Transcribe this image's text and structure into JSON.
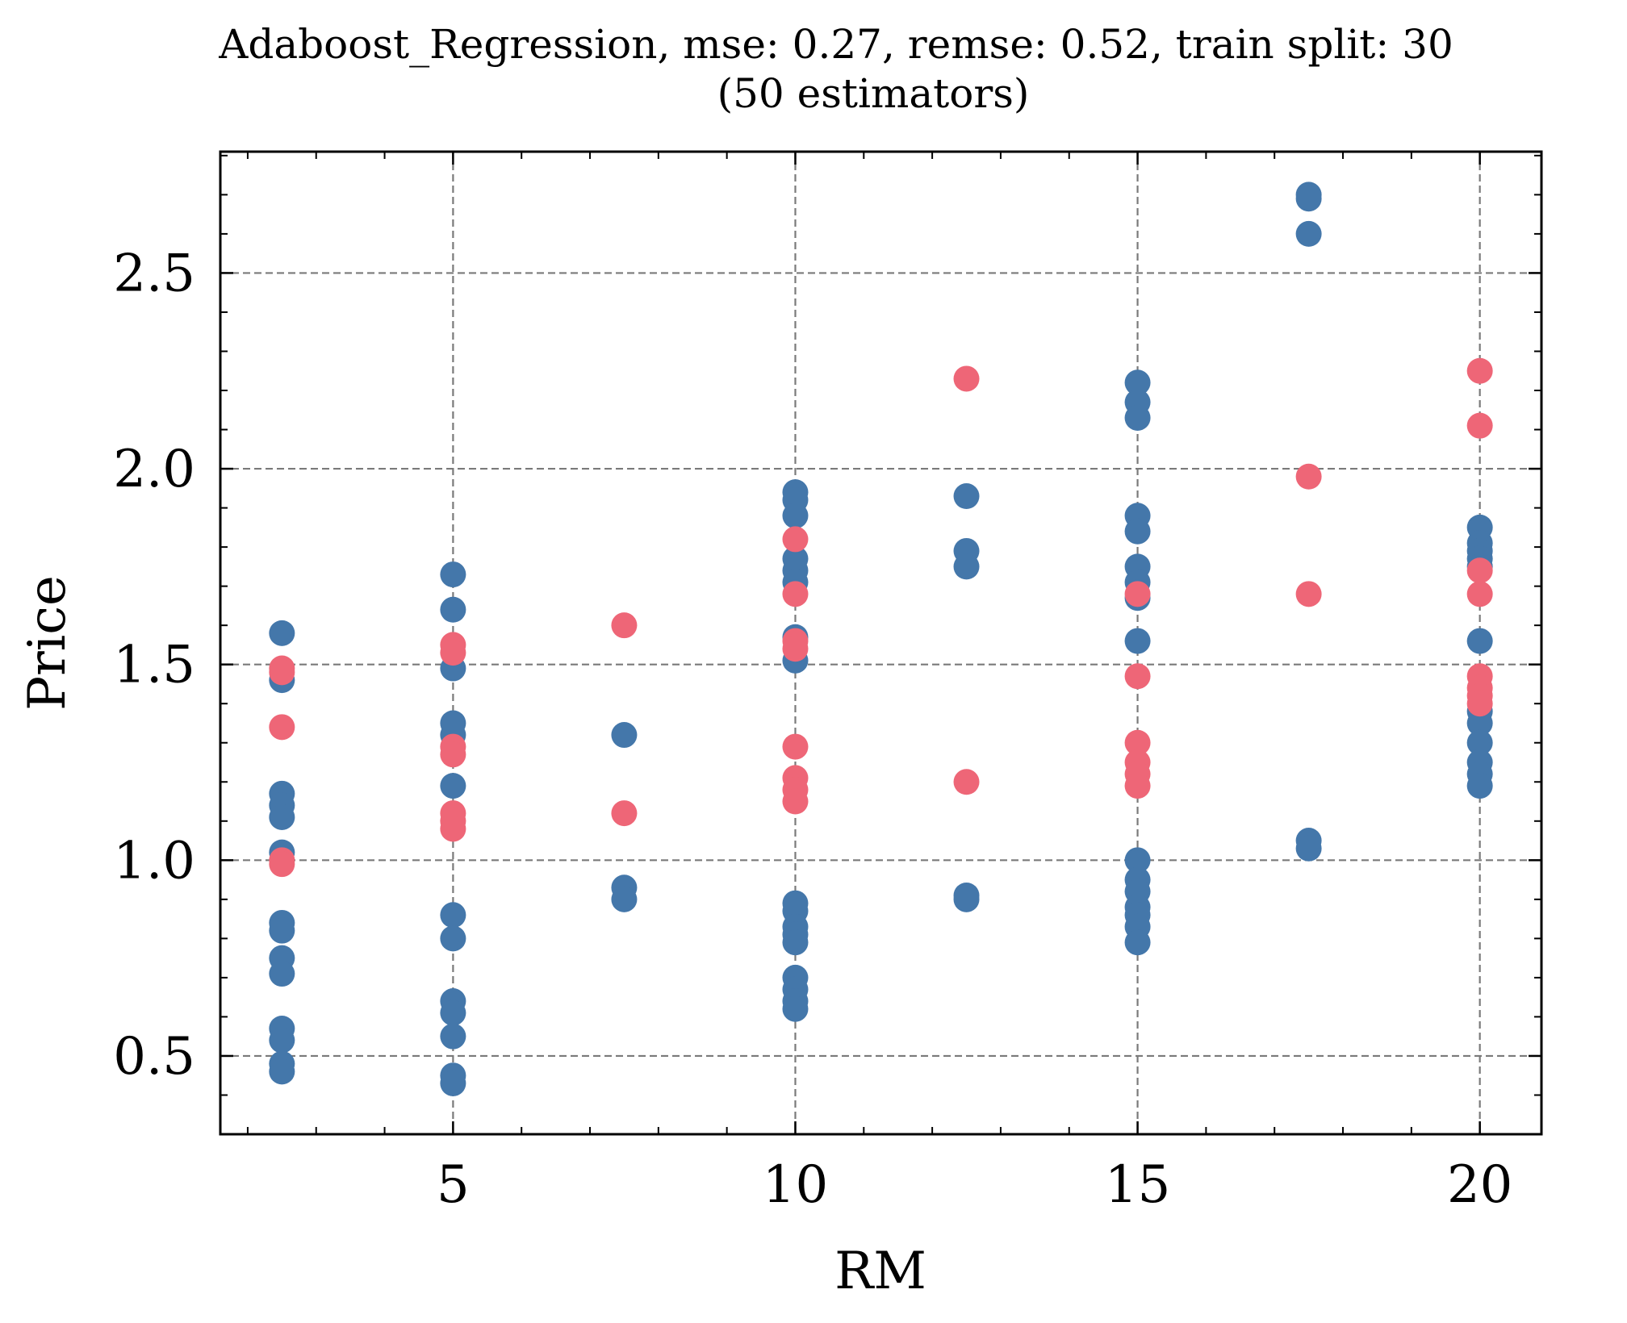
{
  "chart_data": {
    "type": "scatter",
    "title": "Adaboost_Regression, mse: 0.27, remse: 0.52, train split: 30",
    "subtitle": "(50 estimators)",
    "xlabel": "RM",
    "ylabel": "Price",
    "xlim": [
      1.6,
      20.9
    ],
    "ylim": [
      0.3,
      2.81
    ],
    "xticks": [
      5,
      10,
      15,
      20
    ],
    "xtick_labels": [
      "5",
      "10",
      "15",
      "20"
    ],
    "xminor": [
      2,
      3,
      4,
      6,
      7,
      8,
      9,
      11,
      12,
      13,
      14,
      16,
      17,
      18,
      19
    ],
    "yticks": [
      0.5,
      1.0,
      1.5,
      2.0,
      2.5
    ],
    "ytick_labels": [
      "0.5",
      "1.0",
      "1.5",
      "2.0",
      "2.5"
    ],
    "yminor": [
      0.4,
      0.6,
      0.7,
      0.8,
      0.9,
      1.1,
      1.2,
      1.3,
      1.4,
      1.6,
      1.7,
      1.8,
      1.9,
      2.1,
      2.2,
      2.3,
      2.4,
      2.6,
      2.7,
      2.8
    ],
    "grid": true,
    "colors": {
      "series_a": "#4477aa",
      "series_b": "#ee6677"
    },
    "series": [
      {
        "color": "#4477aa",
        "points": [
          [
            2.5,
            1.58
          ],
          [
            2.5,
            1.46
          ],
          [
            2.5,
            1.17
          ],
          [
            2.5,
            1.14
          ],
          [
            2.5,
            1.11
          ],
          [
            2.5,
            1.02
          ],
          [
            2.5,
            0.84
          ],
          [
            2.5,
            0.82
          ],
          [
            2.5,
            0.75
          ],
          [
            2.5,
            0.71
          ],
          [
            2.5,
            0.57
          ],
          [
            2.5,
            0.54
          ],
          [
            2.5,
            0.48
          ],
          [
            2.5,
            0.46
          ],
          [
            5,
            1.73
          ],
          [
            5,
            1.64
          ],
          [
            5,
            1.49
          ],
          [
            5,
            1.35
          ],
          [
            5,
            1.32
          ],
          [
            5,
            1.19
          ],
          [
            5,
            0.86
          ],
          [
            5,
            0.8
          ],
          [
            5,
            0.64
          ],
          [
            5,
            0.61
          ],
          [
            5,
            0.55
          ],
          [
            5,
            0.45
          ],
          [
            5,
            0.43
          ],
          [
            7.5,
            1.32
          ],
          [
            7.5,
            0.93
          ],
          [
            7.5,
            0.9
          ],
          [
            10,
            1.94
          ],
          [
            10,
            1.92
          ],
          [
            10,
            1.88
          ],
          [
            10,
            1.77
          ],
          [
            10,
            1.74
          ],
          [
            10,
            1.71
          ],
          [
            10,
            1.57
          ],
          [
            10,
            1.51
          ],
          [
            10,
            0.89
          ],
          [
            10,
            0.87
          ],
          [
            10,
            0.83
          ],
          [
            10,
            0.81
          ],
          [
            10,
            0.79
          ],
          [
            10,
            0.7
          ],
          [
            10,
            0.67
          ],
          [
            10,
            0.64
          ],
          [
            10,
            0.62
          ],
          [
            12.5,
            1.93
          ],
          [
            12.5,
            1.79
          ],
          [
            12.5,
            1.75
          ],
          [
            12.5,
            0.91
          ],
          [
            12.5,
            0.9
          ],
          [
            15,
            2.22
          ],
          [
            15,
            2.17
          ],
          [
            15,
            2.13
          ],
          [
            15,
            1.88
          ],
          [
            15,
            1.84
          ],
          [
            15,
            1.75
          ],
          [
            15,
            1.71
          ],
          [
            15,
            1.67
          ],
          [
            15,
            1.56
          ],
          [
            15,
            1.0
          ],
          [
            15,
            0.95
          ],
          [
            15,
            0.92
          ],
          [
            15,
            0.88
          ],
          [
            15,
            0.86
          ],
          [
            15,
            0.83
          ],
          [
            15,
            0.79
          ],
          [
            17.5,
            2.7
          ],
          [
            17.5,
            2.69
          ],
          [
            17.5,
            2.6
          ],
          [
            17.5,
            1.05
          ],
          [
            17.5,
            1.03
          ],
          [
            20,
            1.85
          ],
          [
            20,
            1.81
          ],
          [
            20,
            1.79
          ],
          [
            20,
            1.77
          ],
          [
            20,
            1.75
          ],
          [
            20,
            1.56
          ],
          [
            20,
            1.38
          ],
          [
            20,
            1.35
          ],
          [
            20,
            1.3
          ],
          [
            20,
            1.25
          ],
          [
            20,
            1.22
          ],
          [
            20,
            1.19
          ]
        ]
      },
      {
        "color": "#ee6677",
        "points": [
          [
            2.5,
            1.49
          ],
          [
            2.5,
            1.48
          ],
          [
            2.5,
            1.34
          ],
          [
            2.5,
            1.0
          ],
          [
            2.5,
            0.99
          ],
          [
            5,
            1.55
          ],
          [
            5,
            1.53
          ],
          [
            5,
            1.29
          ],
          [
            5,
            1.27
          ],
          [
            5,
            1.12
          ],
          [
            5,
            1.1
          ],
          [
            5,
            1.08
          ],
          [
            7.5,
            1.6
          ],
          [
            7.5,
            1.12
          ],
          [
            10,
            1.82
          ],
          [
            10,
            1.68
          ],
          [
            10,
            1.56
          ],
          [
            10,
            1.54
          ],
          [
            10,
            1.29
          ],
          [
            10,
            1.21
          ],
          [
            10,
            1.18
          ],
          [
            10,
            1.15
          ],
          [
            12.5,
            2.23
          ],
          [
            12.5,
            1.2
          ],
          [
            15,
            1.68
          ],
          [
            15,
            1.47
          ],
          [
            15,
            1.3
          ],
          [
            15,
            1.25
          ],
          [
            15,
            1.22
          ],
          [
            15,
            1.19
          ],
          [
            17.5,
            1.98
          ],
          [
            17.5,
            1.68
          ],
          [
            20,
            2.25
          ],
          [
            20,
            2.11
          ],
          [
            20,
            1.74
          ],
          [
            20,
            1.68
          ],
          [
            20,
            1.47
          ],
          [
            20,
            1.44
          ],
          [
            20,
            1.42
          ],
          [
            20,
            1.4
          ]
        ]
      }
    ]
  }
}
